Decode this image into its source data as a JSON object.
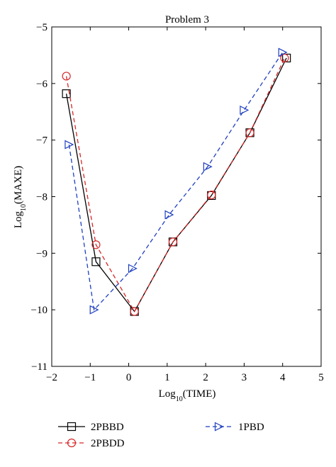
{
  "chart_data": {
    "type": "line",
    "title": "Problem 3",
    "xlabel": "Log10(TIME)",
    "ylabel": "Log10(MAXE)",
    "xlabel_parts": {
      "pre": "Log",
      "sub": "10",
      "post": "(TIME)"
    },
    "ylabel_parts": {
      "pre": "Log",
      "sub": "10",
      "post": "(MAXE)"
    },
    "xlim": [
      -2,
      5
    ],
    "ylim": [
      -11,
      -5
    ],
    "xticks": [
      -2,
      -1,
      0,
      1,
      2,
      3,
      4,
      5
    ],
    "yticks": [
      -11,
      -10,
      -9,
      -8,
      -7,
      -6,
      -5
    ],
    "grid": false,
    "legend_position": "bottom",
    "series": [
      {
        "name": "2PBBD",
        "color": "#000000",
        "line_style": "solid",
        "marker": "square",
        "x": [
          -1.62,
          -0.85,
          0.15,
          1.15,
          2.15,
          3.15,
          4.1
        ],
        "y": [
          -6.18,
          -9.15,
          -10.03,
          -8.8,
          -7.98,
          -6.87,
          -5.55
        ]
      },
      {
        "name": "2PBDD",
        "color": "#d62728",
        "line_style": "dashed",
        "marker": "circle",
        "x": [
          -1.62,
          -0.85,
          0.15,
          1.15,
          2.15,
          3.15,
          4.05
        ],
        "y": [
          -5.87,
          -8.85,
          -10.03,
          -8.8,
          -7.97,
          -6.87,
          -5.55
        ]
      },
      {
        "name": "1PBD",
        "color": "#1f3fbf",
        "line_style": "dashed",
        "marker": "triangle-right",
        "x": [
          -1.55,
          -0.9,
          0.1,
          1.05,
          2.05,
          3.0,
          4.0
        ],
        "y": [
          -7.08,
          -10.0,
          -9.27,
          -8.32,
          -7.47,
          -6.47,
          -5.45
        ]
      }
    ]
  }
}
